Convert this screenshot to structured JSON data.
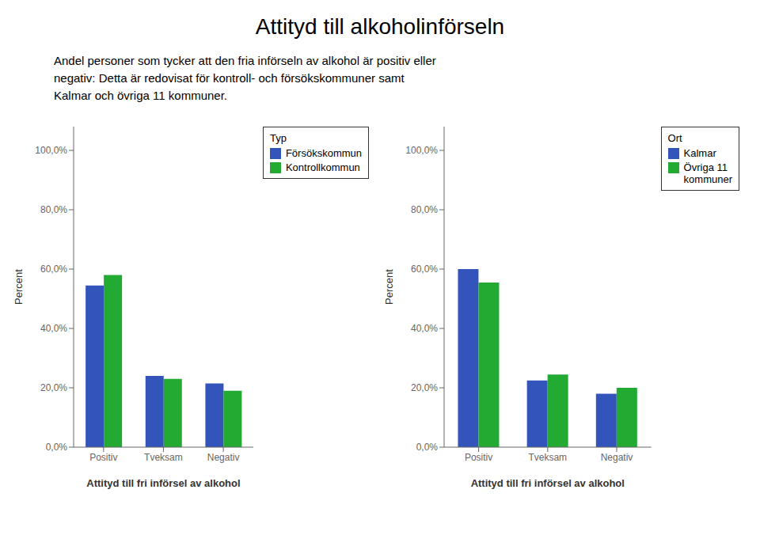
{
  "title": "Attityd till alkoholinförseln",
  "subtitle": [
    "Andel personer som tycker att den fria införseln av alkohol är positiv eller",
    "negativ: Detta är redovisat för kontroll- och försökskommuner samt",
    "Kalmar och övriga 11 kommuner."
  ],
  "chart_data": [
    {
      "type": "bar",
      "xlabel": "Attityd till fri införsel av alkohol",
      "ylabel": "Percent",
      "categories": [
        "Positiv",
        "Tveksam",
        "Negativ"
      ],
      "series": [
        {
          "name": "Försökskommun",
          "color": "#3355BB",
          "values": [
            54.5,
            24.0,
            21.5
          ]
        },
        {
          "name": "Kontrollkommun",
          "color": "#22AA33",
          "values": [
            58.0,
            23.0,
            19.0
          ]
        }
      ],
      "ylim": [
        0,
        108
      ],
      "yticks": [
        {
          "value": 0,
          "label": "0,0%"
        },
        {
          "value": 20,
          "label": "20,0%"
        },
        {
          "value": 40,
          "label": "40,0%"
        },
        {
          "value": 60,
          "label": "60,0%"
        },
        {
          "value": 80,
          "label": "80,0%"
        },
        {
          "value": 100,
          "label": "100,0%"
        }
      ],
      "legend": "right",
      "legend_title": "Typ",
      "grid": false
    },
    {
      "type": "bar",
      "xlabel": "Attityd till fri införsel av alkohol",
      "ylabel": "Percent",
      "categories": [
        "Positiv",
        "Tveksam",
        "Negativ"
      ],
      "series": [
        {
          "name": "Kalmar",
          "color": "#3355BB",
          "values": [
            60.0,
            22.5,
            18.0
          ]
        },
        {
          "name": "Övriga 11\nkommuner",
          "color": "#22AA33",
          "values": [
            55.5,
            24.5,
            20.0
          ]
        }
      ],
      "ylim": [
        0,
        108
      ],
      "yticks": [
        {
          "value": 0,
          "label": "0,0%"
        },
        {
          "value": 20,
          "label": "20,0%"
        },
        {
          "value": 40,
          "label": "40,0%"
        },
        {
          "value": 60,
          "label": "60,0%"
        },
        {
          "value": 80,
          "label": "80,0%"
        },
        {
          "value": 100,
          "label": "100,0%"
        }
      ],
      "legend": "right",
      "legend_title": "Ort",
      "grid": false
    }
  ]
}
